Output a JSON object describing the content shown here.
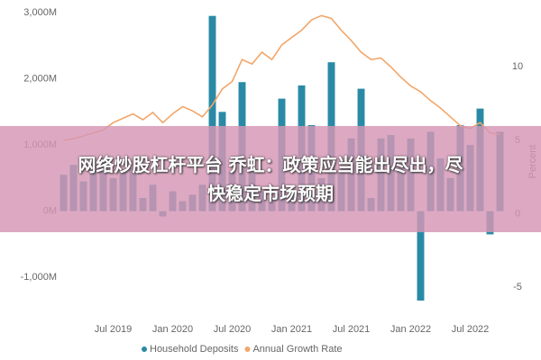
{
  "chart_data": {
    "type": "bar-line",
    "categories": [
      null,
      null,
      null,
      null,
      null,
      "Jul 2019",
      null,
      null,
      null,
      null,
      null,
      "Jan 2020",
      null,
      null,
      null,
      null,
      null,
      "Jul 2020",
      null,
      null,
      null,
      null,
      null,
      "Jan 2021",
      null,
      null,
      null,
      null,
      null,
      "Jul 2021",
      null,
      null,
      null,
      null,
      null,
      "Jan 2022",
      null,
      null,
      null,
      null,
      null,
      "Jul 2022",
      null,
      null,
      null
    ],
    "series": [
      {
        "name": "Household Deposits",
        "color": "#2a8aa6",
        "type": "bar",
        "values": [
          550,
          700,
          450,
          700,
          800,
          500,
          600,
          650,
          200,
          400,
          -80,
          300,
          150,
          250,
          400,
          2950,
          1500,
          600,
          1950,
          700,
          300,
          200,
          1700,
          300,
          1900,
          1300,
          500,
          2250,
          600,
          1100,
          1850,
          200,
          1100,
          1150,
          700,
          1100,
          -1350,
          1200,
          800,
          500,
          1300,
          1000,
          1550,
          -350,
          1200
        ]
      },
      {
        "name": "Annual Growth Rate",
        "color": "#f2a66a",
        "type": "line",
        "axis": "y2",
        "values": [
          5,
          5.1,
          5.3,
          5.5,
          5.7,
          6.2,
          6.5,
          6.8,
          6.4,
          6.9,
          6.2,
          6.8,
          7.3,
          7,
          6.6,
          7.4,
          8.5,
          9,
          10.5,
          10.2,
          11,
          10.5,
          11.5,
          12,
          12.5,
          13.2,
          13.5,
          13.3,
          12.5,
          11.8,
          11,
          10.5,
          10.6,
          10,
          9.3,
          8.7,
          8.3,
          7.7,
          7.2,
          6.6,
          6,
          5.8,
          6.2,
          5.5,
          5.4
        ]
      }
    ],
    "ylim": [
      -1500,
      3000
    ],
    "yticks": [
      {
        "value": -1000,
        "label": "-1,000M"
      },
      {
        "value": 0,
        "label": "0M"
      },
      {
        "value": 1000,
        "label": "1,000M"
      },
      {
        "value": 2000,
        "label": "2,000M"
      },
      {
        "value": 3000,
        "label": "3,000M"
      }
    ],
    "y2lim": [
      -6.6,
      13.7
    ],
    "y2ticks": [
      -5,
      0,
      5,
      10
    ],
    "y2label": "Percent",
    "grid": false,
    "legend": "bottom"
  },
  "banner": {
    "lines": [
      "网络炒股杠杆平台 乔虹：政策应当能出尽出，尽",
      "快稳定市场预期"
    ]
  }
}
